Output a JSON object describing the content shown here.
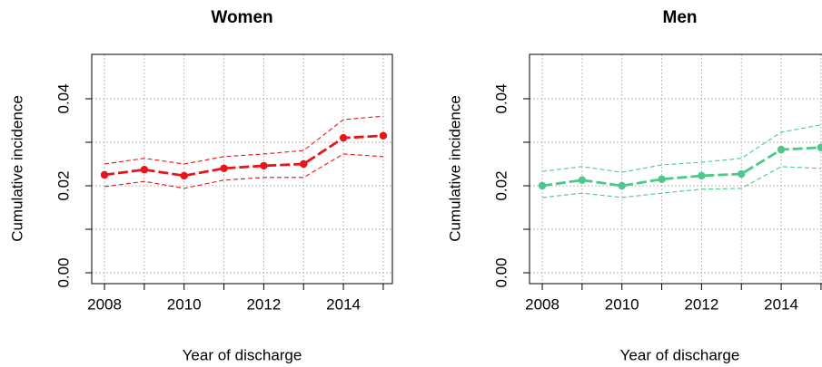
{
  "chart_data": [
    {
      "type": "line",
      "title": "Women",
      "x_label": "Year of discharge",
      "y_label": "Cumulative incidence",
      "x": [
        2008,
        2009,
        2010,
        2011,
        2012,
        2013,
        2014,
        2015
      ],
      "xlim": [
        2007.68,
        2015.23
      ],
      "xticks": [
        2008,
        2010,
        2012,
        2014
      ],
      "minor_xticks": [
        2009,
        2011,
        2013,
        2015
      ],
      "ylim": [
        -0.0025,
        0.0502
      ],
      "yticks": [
        {
          "value": 0,
          "label": "0.00"
        },
        {
          "value": 0.02,
          "label": "0.02"
        },
        {
          "value": 0.04,
          "label": "0.04"
        }
      ],
      "minor_yticks": [
        0.01,
        0.03
      ],
      "grid": true,
      "series": [
        {
          "color": "#e8141a",
          "line_style": "solid",
          "marker": true,
          "values": [
            0.0225,
            0.0237,
            0.0223,
            0.024,
            0.0246,
            0.025,
            0.031,
            0.0315
          ]
        },
        {
          "color": "#e8141a",
          "line_style": "dashed",
          "marker": false,
          "values": [
            0.025,
            0.0263,
            0.025,
            0.0267,
            0.0273,
            0.0281,
            0.0352,
            0.036
          ]
        },
        {
          "color": "#e8141a",
          "line_style": "dashed",
          "marker": false,
          "values": [
            0.0198,
            0.021,
            0.0194,
            0.0213,
            0.0219,
            0.0219,
            0.0273,
            0.0267
          ]
        }
      ]
    },
    {
      "type": "line",
      "title": "Men",
      "x_label": "Year of discharge",
      "y_label": "Cumulative incidence",
      "x": [
        2008,
        2009,
        2010,
        2011,
        2012,
        2013,
        2014,
        2015
      ],
      "xlim": [
        2007.68,
        2015.23
      ],
      "xticks": [
        2008,
        2010,
        2012,
        2014
      ],
      "minor_xticks": [
        2009,
        2011,
        2013,
        2015
      ],
      "ylim": [
        -0.0025,
        0.0502
      ],
      "yticks": [
        {
          "value": 0,
          "label": "0.00"
        },
        {
          "value": 0.02,
          "label": "0.02"
        },
        {
          "value": 0.04,
          "label": "0.04"
        }
      ],
      "minor_yticks": [
        0.01,
        0.03
      ],
      "grid": true,
      "series": [
        {
          "color": "#4cc98a",
          "line_style": "solid",
          "marker": true,
          "values": [
            0.02,
            0.0213,
            0.02,
            0.0215,
            0.0223,
            0.0227,
            0.0283,
            0.0288
          ]
        },
        {
          "color": "#4cc98a",
          "line_style": "dashed",
          "marker": false,
          "values": [
            0.0233,
            0.0244,
            0.0231,
            0.0248,
            0.0254,
            0.0263,
            0.0323,
            0.034
          ]
        },
        {
          "color": "#4cc98a",
          "line_style": "dashed",
          "marker": false,
          "values": [
            0.0173,
            0.0183,
            0.0173,
            0.0183,
            0.0192,
            0.0194,
            0.0244,
            0.024
          ]
        }
      ]
    }
  ]
}
